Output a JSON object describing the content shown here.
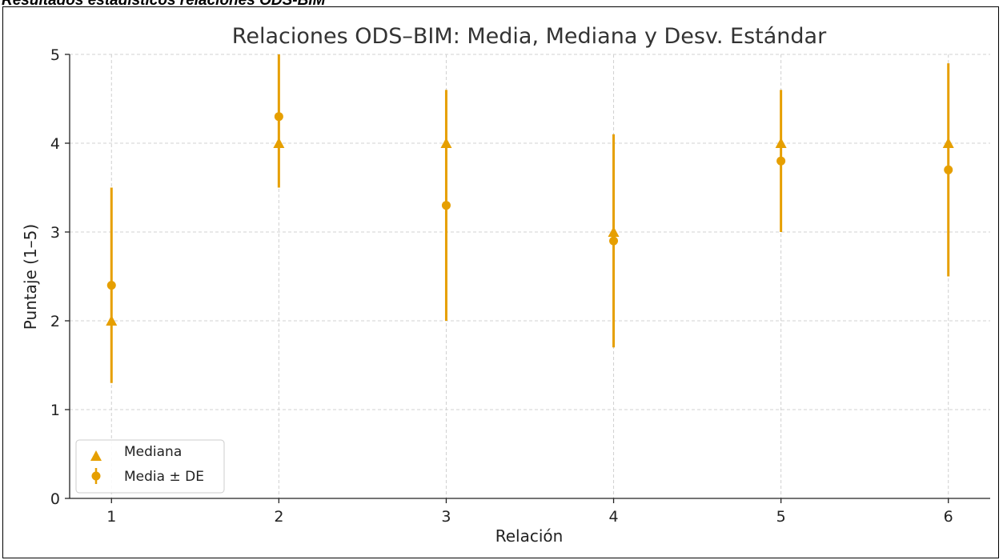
{
  "caption": "Resultados estadísticos relaciones ODS-BIM",
  "chart_data": {
    "type": "scatter",
    "title": "Relaciones ODS–BIM: Media, Mediana y Desv. Estándar",
    "xlabel": "Relación",
    "ylabel": "Puntaje (1–5)",
    "x": [
      1,
      2,
      3,
      4,
      5,
      6
    ],
    "xlim": [
      0.75,
      6.25
    ],
    "ylim": [
      0,
      5
    ],
    "xticks": [
      "1",
      "2",
      "3",
      "4",
      "5",
      "6"
    ],
    "yticks": [
      "0",
      "1",
      "2",
      "3",
      "4",
      "5"
    ],
    "grid": true,
    "legend_position": "lower-left",
    "color": "#E69F00",
    "series": [
      {
        "name": "Mediana",
        "marker": "triangle",
        "values": [
          2,
          4,
          4,
          3,
          4,
          4
        ]
      },
      {
        "name": "Media ± DE",
        "marker": "circle",
        "values": [
          2.4,
          4.3,
          3.3,
          2.9,
          3.8,
          3.7
        ],
        "error": [
          1.1,
          0.8,
          1.3,
          1.2,
          0.8,
          1.2
        ]
      }
    ]
  }
}
